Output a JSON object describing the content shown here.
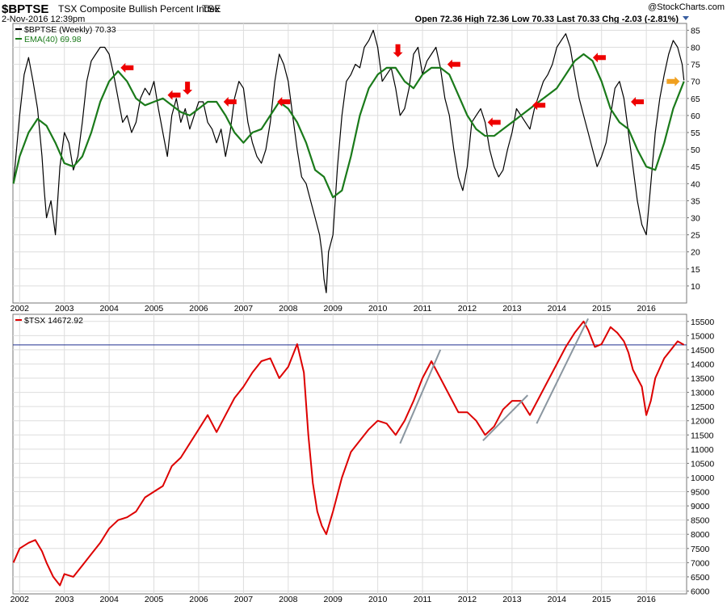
{
  "header": {
    "symbol": "$BPTSE",
    "name": "TSX Composite Bullish Percent Index",
    "exchange": "TSE",
    "watermark": "@StockCharts.com",
    "date_time": "2-Nov-2016 12:39pm",
    "quote": "Open 72.36  High 72.36  Low 70.33  Last 70.33  Chg -2.03 (-2.81%)"
  },
  "colors": {
    "bpi_line": "#000000",
    "ema_line": "#1a7a1a",
    "tsx_line": "#dd0000",
    "trend_line": "#8a96a0",
    "ref_line": "#1f2f8f",
    "arrow_red": "#ee0000",
    "arrow_orange": "#f0a020",
    "grid": "#dddddd"
  },
  "chart_data": [
    {
      "type": "line",
      "title": "$BPTSE TSX Composite Bullish Percent Index TSE",
      "xlabel": "",
      "ylabel": "",
      "x_ticks": [
        "2002",
        "2003",
        "2004",
        "2005",
        "2006",
        "2007",
        "2008",
        "2009",
        "2010",
        "2011",
        "2012",
        "2013",
        "2014",
        "2015",
        "2016"
      ],
      "y_ticks": [
        10,
        15,
        20,
        25,
        30,
        35,
        40,
        45,
        50,
        55,
        60,
        65,
        70,
        75,
        80,
        85
      ],
      "ylim": [
        5,
        87
      ],
      "xlim": [
        2001.85,
        2016.9
      ],
      "grid": true,
      "legend_position": "top-left",
      "series": [
        {
          "name": "$BPTSE (Weekly)",
          "legend_label": "$BPTSE (Weekly) 70.33",
          "x": [
            2001.86,
            2002.0,
            2002.1,
            2002.2,
            2002.3,
            2002.4,
            2002.5,
            2002.55,
            2002.6,
            2002.7,
            2002.8,
            2002.9,
            2003.0,
            2003.1,
            2003.2,
            2003.3,
            2003.4,
            2003.5,
            2003.6,
            2003.7,
            2003.8,
            2003.9,
            2004.0,
            2004.1,
            2004.2,
            2004.3,
            2004.4,
            2004.5,
            2004.6,
            2004.7,
            2004.8,
            2004.9,
            2005.0,
            2005.1,
            2005.2,
            2005.3,
            2005.4,
            2005.5,
            2005.6,
            2005.7,
            2005.8,
            2005.9,
            2006.0,
            2006.1,
            2006.2,
            2006.3,
            2006.4,
            2006.5,
            2006.6,
            2006.7,
            2006.8,
            2006.9,
            2007.0,
            2007.1,
            2007.2,
            2007.3,
            2007.4,
            2007.5,
            2007.6,
            2007.7,
            2007.8,
            2007.9,
            2008.0,
            2008.1,
            2008.2,
            2008.3,
            2008.4,
            2008.5,
            2008.6,
            2008.7,
            2008.75,
            2008.8,
            2008.85,
            2008.9,
            2009.0,
            2009.1,
            2009.2,
            2009.3,
            2009.4,
            2009.5,
            2009.6,
            2009.7,
            2009.8,
            2009.9,
            2010.0,
            2010.1,
            2010.2,
            2010.3,
            2010.4,
            2010.5,
            2010.6,
            2010.7,
            2010.8,
            2010.9,
            2011.0,
            2011.1,
            2011.2,
            2011.3,
            2011.4,
            2011.5,
            2011.6,
            2011.7,
            2011.8,
            2011.9,
            2012.0,
            2012.1,
            2012.2,
            2012.3,
            2012.4,
            2012.5,
            2012.6,
            2012.7,
            2012.8,
            2012.9,
            2013.0,
            2013.1,
            2013.2,
            2013.3,
            2013.4,
            2013.5,
            2013.6,
            2013.7,
            2013.8,
            2013.9,
            2014.0,
            2014.1,
            2014.2,
            2014.3,
            2014.4,
            2014.5,
            2014.6,
            2014.7,
            2014.8,
            2014.9,
            2015.0,
            2015.1,
            2015.2,
            2015.3,
            2015.4,
            2015.5,
            2015.6,
            2015.7,
            2015.8,
            2015.9,
            2016.0,
            2016.1,
            2016.2,
            2016.3,
            2016.4,
            2016.5,
            2016.6,
            2016.7,
            2016.8,
            2016.84
          ],
          "y": [
            40,
            60,
            72,
            77,
            70,
            62,
            48,
            38,
            30,
            35,
            25,
            45,
            55,
            52,
            44,
            48,
            58,
            70,
            76,
            78,
            80,
            80,
            78,
            72,
            65,
            58,
            60,
            55,
            58,
            65,
            68,
            66,
            70,
            62,
            55,
            48,
            60,
            65,
            58,
            62,
            56,
            60,
            64,
            64,
            58,
            56,
            52,
            56,
            48,
            55,
            65,
            70,
            68,
            58,
            52,
            48,
            46,
            50,
            58,
            70,
            78,
            75,
            70,
            60,
            50,
            42,
            40,
            35,
            30,
            25,
            20,
            12,
            8,
            20,
            25,
            45,
            60,
            70,
            72,
            75,
            74,
            80,
            82,
            85,
            80,
            70,
            72,
            74,
            68,
            60,
            62,
            68,
            78,
            80,
            72,
            76,
            78,
            80,
            74,
            65,
            60,
            50,
            42,
            38,
            45,
            58,
            60,
            62,
            58,
            50,
            45,
            42,
            44,
            50,
            55,
            62,
            60,
            58,
            56,
            62,
            66,
            70,
            72,
            75,
            80,
            82,
            84,
            80,
            72,
            65,
            60,
            55,
            50,
            45,
            48,
            52,
            60,
            68,
            70,
            65,
            55,
            45,
            35,
            28,
            25,
            40,
            55,
            65,
            72,
            78,
            82,
            80,
            75,
            70.33
          ]
        },
        {
          "name": "EMA(40)",
          "legend_label": "EMA(40) 69.98",
          "x": [
            2001.86,
            2002.0,
            2002.2,
            2002.4,
            2002.6,
            2002.8,
            2003.0,
            2003.2,
            2003.4,
            2003.6,
            2003.8,
            2004.0,
            2004.2,
            2004.4,
            2004.6,
            2004.8,
            2005.0,
            2005.2,
            2005.4,
            2005.6,
            2005.8,
            2006.0,
            2006.2,
            2006.4,
            2006.6,
            2006.8,
            2007.0,
            2007.2,
            2007.4,
            2007.6,
            2007.8,
            2008.0,
            2008.2,
            2008.4,
            2008.6,
            2008.8,
            2009.0,
            2009.2,
            2009.4,
            2009.6,
            2009.8,
            2010.0,
            2010.2,
            2010.4,
            2010.6,
            2010.8,
            2011.0,
            2011.2,
            2011.4,
            2011.6,
            2011.8,
            2012.0,
            2012.2,
            2012.4,
            2012.6,
            2012.8,
            2013.0,
            2013.2,
            2013.4,
            2013.6,
            2013.8,
            2014.0,
            2014.2,
            2014.4,
            2014.6,
            2014.8,
            2015.0,
            2015.2,
            2015.4,
            2015.6,
            2015.8,
            2016.0,
            2016.2,
            2016.4,
            2016.6,
            2016.84
          ],
          "y": [
            40,
            48,
            55,
            59,
            57,
            52,
            46,
            45,
            48,
            55,
            64,
            70,
            73,
            70,
            65,
            63,
            64,
            65,
            63,
            61,
            60,
            62,
            64,
            64,
            60,
            55,
            52,
            55,
            56,
            60,
            64,
            62,
            58,
            52,
            44,
            42,
            36,
            38,
            48,
            60,
            68,
            72,
            74,
            74,
            70,
            68,
            72,
            74,
            74,
            72,
            66,
            60,
            56,
            54,
            54,
            56,
            58,
            60,
            62,
            64,
            66,
            68,
            72,
            76,
            78,
            76,
            70,
            62,
            58,
            56,
            50,
            45,
            44,
            52,
            62,
            69.98
          ]
        }
      ],
      "annotations": [
        {
          "symbol": "arrow-left",
          "color": "red",
          "x": 2004.4,
          "y": 74
        },
        {
          "symbol": "arrow-left",
          "color": "red",
          "x": 2005.45,
          "y": 66
        },
        {
          "symbol": "arrow-down",
          "color": "red",
          "x": 2005.75,
          "y": 68
        },
        {
          "symbol": "arrow-left",
          "color": "red",
          "x": 2006.7,
          "y": 64
        },
        {
          "symbol": "arrow-left",
          "color": "red",
          "x": 2007.9,
          "y": 64
        },
        {
          "symbol": "arrow-down",
          "color": "red",
          "x": 2010.45,
          "y": 79
        },
        {
          "symbol": "arrow-left",
          "color": "red",
          "x": 2011.7,
          "y": 75
        },
        {
          "symbol": "arrow-left",
          "color": "red",
          "x": 2012.6,
          "y": 58
        },
        {
          "symbol": "arrow-left",
          "color": "red",
          "x": 2013.6,
          "y": 63
        },
        {
          "symbol": "arrow-left",
          "color": "red",
          "x": 2014.95,
          "y": 77
        },
        {
          "symbol": "arrow-left",
          "color": "red",
          "x": 2015.8,
          "y": 64
        },
        {
          "symbol": "arrow-right",
          "color": "orange",
          "x": 2016.6,
          "y": 70
        }
      ]
    },
    {
      "type": "line",
      "title": "$TSX",
      "xlabel": "",
      "ylabel": "",
      "x_ticks": [
        "2002",
        "2003",
        "2004",
        "2005",
        "2006",
        "2007",
        "2008",
        "2009",
        "2010",
        "2011",
        "2012",
        "2013",
        "2014",
        "2015",
        "2016"
      ],
      "y_ticks": [
        6000,
        6500,
        7000,
        7500,
        8000,
        8500,
        9000,
        9500,
        10000,
        10500,
        11000,
        11500,
        12000,
        12500,
        13000,
        13500,
        14000,
        14500,
        15000,
        15500
      ],
      "ylim": [
        5900,
        15750
      ],
      "xlim": [
        2001.85,
        2016.9
      ],
      "grid": true,
      "legend_position": "top-left",
      "series": [
        {
          "name": "$TSX",
          "legend_label": "$TSX 14672.92",
          "x": [
            2001.86,
            2002.0,
            2002.2,
            2002.35,
            2002.5,
            2002.6,
            2002.75,
            2002.9,
            2003.0,
            2003.2,
            2003.4,
            2003.6,
            2003.8,
            2004.0,
            2004.2,
            2004.4,
            2004.6,
            2004.8,
            2005.0,
            2005.2,
            2005.4,
            2005.6,
            2005.8,
            2006.0,
            2006.2,
            2006.4,
            2006.6,
            2006.8,
            2007.0,
            2007.2,
            2007.4,
            2007.6,
            2007.8,
            2008.0,
            2008.2,
            2008.35,
            2008.45,
            2008.55,
            2008.65,
            2008.75,
            2008.85,
            2009.0,
            2009.2,
            2009.4,
            2009.6,
            2009.8,
            2010.0,
            2010.2,
            2010.4,
            2010.6,
            2010.8,
            2011.0,
            2011.2,
            2011.4,
            2011.6,
            2011.8,
            2012.0,
            2012.2,
            2012.4,
            2012.6,
            2012.8,
            2013.0,
            2013.2,
            2013.4,
            2013.6,
            2013.8,
            2014.0,
            2014.2,
            2014.4,
            2014.6,
            2014.7,
            2014.85,
            2015.0,
            2015.1,
            2015.2,
            2015.35,
            2015.5,
            2015.6,
            2015.7,
            2015.8,
            2015.9,
            2016.0,
            2016.1,
            2016.2,
            2016.4,
            2016.6,
            2016.7,
            2016.84
          ],
          "y": [
            7000,
            7500,
            7700,
            7800,
            7400,
            7000,
            6500,
            6200,
            6600,
            6500,
            6900,
            7300,
            7700,
            8200,
            8500,
            8600,
            8800,
            9300,
            9500,
            9700,
            10400,
            10700,
            11200,
            11700,
            12200,
            11600,
            12200,
            12800,
            13200,
            13700,
            14100,
            14200,
            13500,
            13900,
            14700,
            13700,
            11500,
            9800,
            8800,
            8300,
            8000,
            8800,
            10000,
            10900,
            11300,
            11700,
            12000,
            11900,
            11500,
            12000,
            12700,
            13500,
            14100,
            13500,
            12900,
            12300,
            12300,
            12000,
            11500,
            11800,
            12400,
            12700,
            12700,
            12200,
            12800,
            13400,
            14000,
            14600,
            15100,
            15500,
            15200,
            14600,
            14700,
            15000,
            15300,
            15100,
            14800,
            14400,
            13800,
            13500,
            13200,
            12200,
            12700,
            13500,
            14200,
            14600,
            14800,
            14672.92
          ]
        }
      ],
      "reference_lines": [
        {
          "axis": "y",
          "value": 14672.92
        }
      ],
      "trend_lines": [
        {
          "x": [
            2010.5,
            2011.4
          ],
          "y": [
            11200,
            14500
          ]
        },
        {
          "x": [
            2012.35,
            2013.35
          ],
          "y": [
            11300,
            12900
          ]
        },
        {
          "x": [
            2013.55,
            2014.7
          ],
          "y": [
            11900,
            15600
          ]
        }
      ]
    }
  ]
}
